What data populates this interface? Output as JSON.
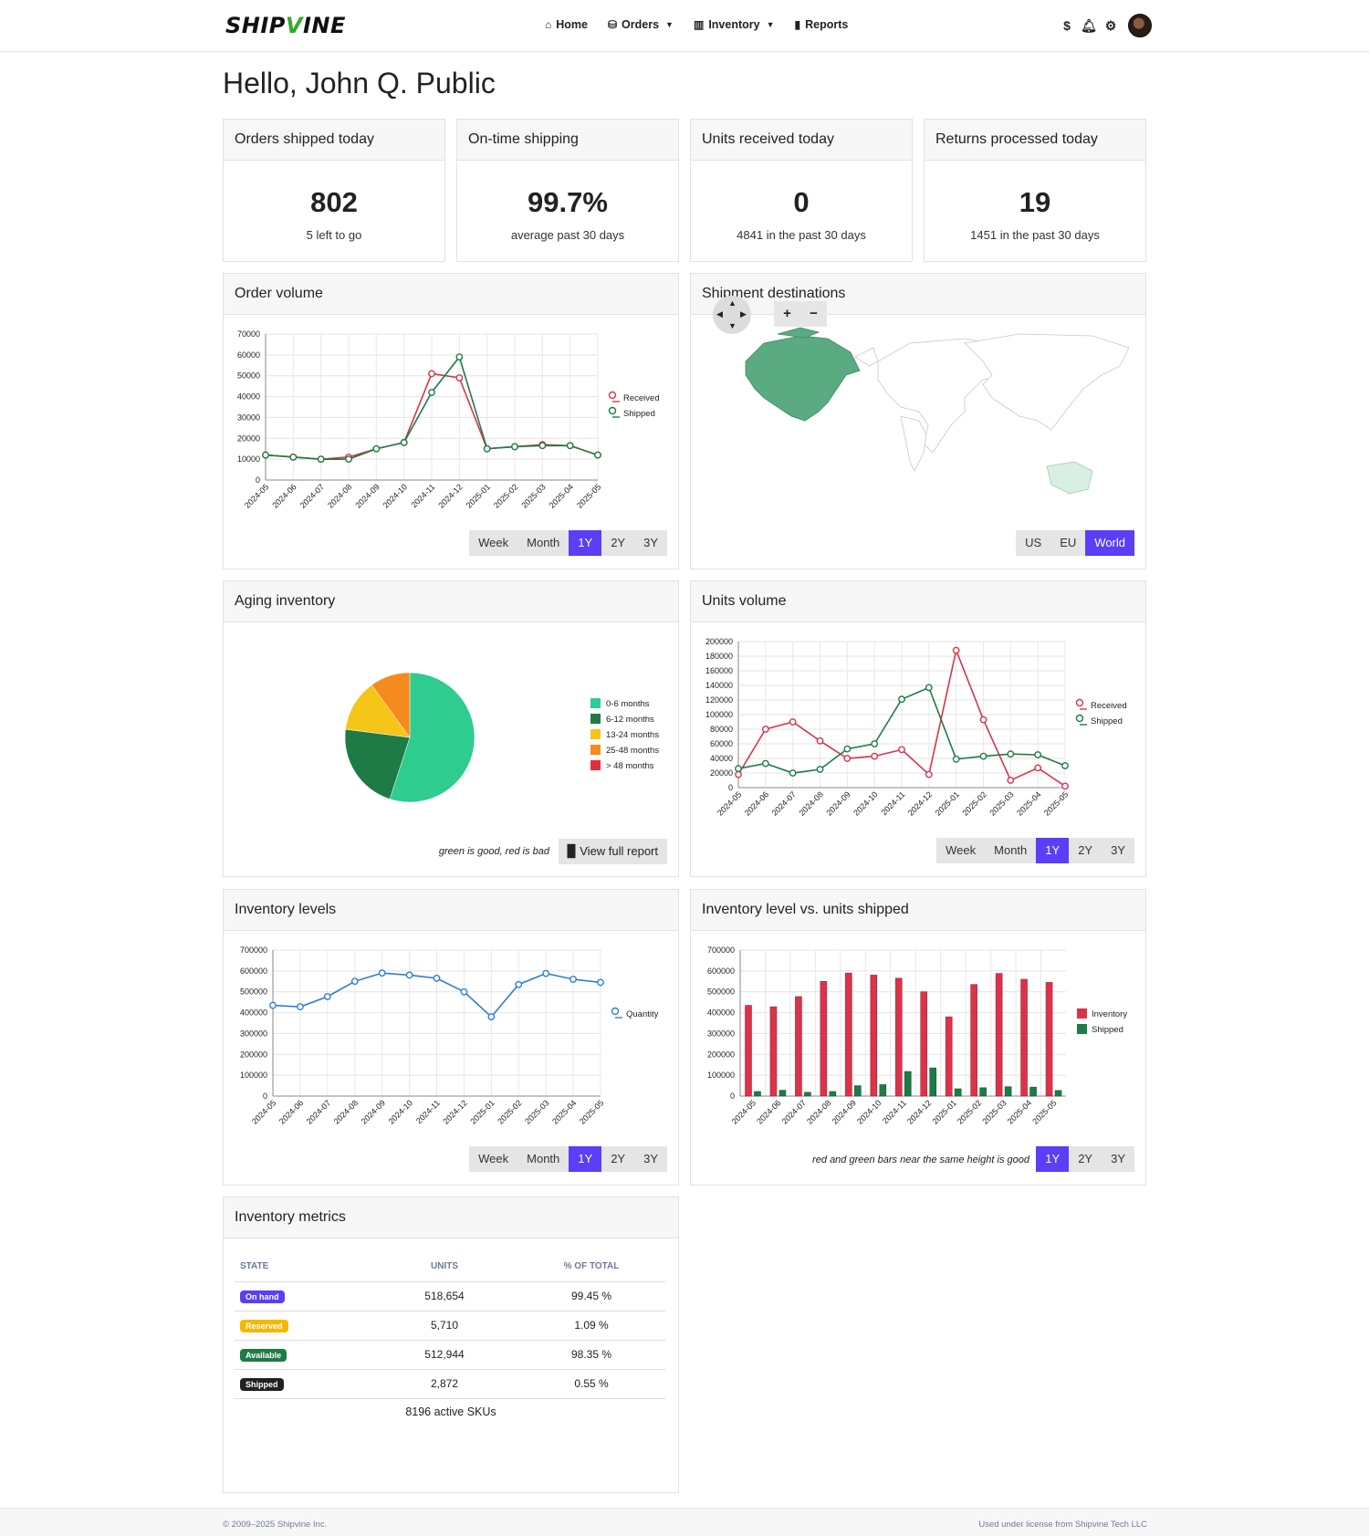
{
  "brand": {
    "logo": "SHIPVINE"
  },
  "nav": [
    {
      "label": "Home",
      "icon": "home-icon"
    },
    {
      "label": "Orders",
      "icon": "boxes-icon",
      "dropdown": true
    },
    {
      "label": "Inventory",
      "icon": "barcode-icon",
      "dropdown": true
    },
    {
      "label": "Reports",
      "icon": "book-icon"
    }
  ],
  "top_icons": [
    "dollar-icon",
    "bell-icon",
    "gear-icon",
    "avatar"
  ],
  "greeting": "Hello, John Q. Public",
  "stats": [
    {
      "title": "Orders shipped today",
      "value": "802",
      "sub": "5 left to go"
    },
    {
      "title": "On-time shipping",
      "value": "99.7%",
      "sub": "average past 30 days"
    },
    {
      "title": "Units received today",
      "value": "0",
      "sub": "4841 in the past 30 days"
    },
    {
      "title": "Returns processed today",
      "value": "19",
      "sub": "1451 in the past 30 days"
    }
  ],
  "range_buttons": {
    "week": "Week",
    "month": "Month",
    "y1": "1Y",
    "y2": "2Y",
    "y3": "3Y"
  },
  "order_volume": {
    "title": "Order volume"
  },
  "shipment_destinations": {
    "title": "Shipment destinations",
    "zoom_in": "+",
    "zoom_out": "−",
    "regions": [
      "US",
      "EU",
      "World"
    ],
    "active_region": "World"
  },
  "aging_inventory": {
    "title": "Aging inventory",
    "note": "green is good, red is bad",
    "report_button": "View full report"
  },
  "units_volume": {
    "title": "Units volume"
  },
  "inventory_levels": {
    "title": "Inventory levels"
  },
  "inv_vs_shipped": {
    "title": "Inventory level vs. units shipped",
    "note": "red and green bars near the same height is good"
  },
  "inventory_metrics": {
    "title": "Inventory metrics",
    "headers": [
      "State",
      "Units",
      "% of total"
    ],
    "rows": [
      {
        "state": "On hand",
        "color": "#5b3ef5",
        "units": "518,654",
        "pct": "99.45 %"
      },
      {
        "state": "Reserved",
        "color": "#f5b700",
        "units": "5,710",
        "pct": "1.09 %"
      },
      {
        "state": "Available",
        "color": "#1e7b45",
        "units": "512,944",
        "pct": "98.35 %"
      },
      {
        "state": "Shipped",
        "color": "#222222",
        "units": "2,872",
        "pct": "0.55 %"
      }
    ],
    "skus": "8196 active SKUs"
  },
  "footer": {
    "left": "© 2009–2025 Shipvine Inc.",
    "right": "Used under license from Shipvine Tech LLC"
  },
  "colors": {
    "accent": "#5b3ef5",
    "received": "#d9344a",
    "shipped": "#1e7b45",
    "quantity": "#2e7fd0"
  },
  "chart_data": [
    {
      "id": "order_volume",
      "type": "line",
      "x": [
        "2024-05",
        "2024-06",
        "2024-07",
        "2024-08",
        "2024-09",
        "2024-10",
        "2024-11",
        "2024-12",
        "2025-01",
        "2025-02",
        "2025-03",
        "2025-04",
        "2025-05"
      ],
      "ylim": [
        0,
        70000
      ],
      "yticks": [
        0,
        10000,
        20000,
        30000,
        40000,
        50000,
        60000,
        70000
      ],
      "series": [
        {
          "name": "Received",
          "color": "#d9344a",
          "values": [
            12000,
            11000,
            10000,
            11000,
            15000,
            18000,
            51000,
            49000,
            15000,
            16000,
            17000,
            16500,
            12000
          ]
        },
        {
          "name": "Shipped",
          "color": "#1e7b45",
          "values": [
            12000,
            11000,
            10000,
            10000,
            15000,
            18000,
            42000,
            59000,
            15000,
            16000,
            16500,
            16500,
            12000
          ]
        }
      ],
      "legend": "right",
      "grid": true
    },
    {
      "id": "aging_inventory",
      "type": "pie",
      "labels": [
        "0-6 months",
        "6-12 months",
        "13-24 months",
        "25-48 months",
        "> 48 months"
      ],
      "values": [
        55,
        22,
        13,
        10,
        0
      ],
      "colors": [
        "#2ecc8f",
        "#1e7b45",
        "#f5c518",
        "#f58a1f",
        "#e03040"
      ],
      "legend": "right"
    },
    {
      "id": "units_volume",
      "type": "line",
      "x": [
        "2024-05",
        "2024-06",
        "2024-07",
        "2024-08",
        "2024-09",
        "2024-10",
        "2024-11",
        "2024-12",
        "2025-01",
        "2025-02",
        "2025-03",
        "2025-04",
        "2025-05"
      ],
      "ylim": [
        0,
        200000
      ],
      "yticks": [
        0,
        20000,
        40000,
        60000,
        80000,
        100000,
        120000,
        140000,
        160000,
        180000,
        200000
      ],
      "series": [
        {
          "name": "Received",
          "color": "#d9344a",
          "values": [
            18000,
            80000,
            90000,
            64000,
            40000,
            43000,
            52000,
            18000,
            188000,
            93000,
            10000,
            27000,
            2000
          ]
        },
        {
          "name": "Shipped",
          "color": "#1e7b45",
          "values": [
            26000,
            33000,
            20000,
            25000,
            53000,
            60000,
            121000,
            137000,
            39000,
            43000,
            46000,
            45000,
            30000
          ]
        }
      ],
      "legend": "right",
      "grid": true
    },
    {
      "id": "inventory_levels",
      "type": "line",
      "x": [
        "2024-05",
        "2024-06",
        "2024-07",
        "2024-08",
        "2024-09",
        "2024-10",
        "2024-11",
        "2024-12",
        "2025-01",
        "2025-02",
        "2025-03",
        "2025-04",
        "2025-05"
      ],
      "ylim": [
        0,
        700000
      ],
      "yticks": [
        0,
        100000,
        200000,
        300000,
        400000,
        500000,
        600000,
        700000
      ],
      "series": [
        {
          "name": "Quantity",
          "color": "#2e7fd0",
          "values": [
            435000,
            428000,
            477000,
            550000,
            590000,
            580000,
            565000,
            500000,
            380000,
            535000,
            588000,
            560000,
            545000
          ]
        }
      ],
      "legend": "right",
      "grid": true
    },
    {
      "id": "inv_vs_shipped",
      "type": "bar",
      "categories": [
        "2024-05",
        "2024-06",
        "2024-07",
        "2024-08",
        "2024-09",
        "2024-10",
        "2024-11",
        "2024-12",
        "2025-01",
        "2025-02",
        "2025-03",
        "2025-04",
        "2025-05"
      ],
      "ylim": [
        0,
        700000
      ],
      "yticks": [
        0,
        100000,
        200000,
        300000,
        400000,
        500000,
        600000,
        700000
      ],
      "series": [
        {
          "name": "Inventory",
          "color": "#d9344a",
          "values": [
            435000,
            428000,
            477000,
            550000,
            590000,
            580000,
            565000,
            500000,
            380000,
            535000,
            588000,
            560000,
            545000
          ]
        },
        {
          "name": "Shipped",
          "color": "#1e7b45",
          "values": [
            22000,
            28000,
            18000,
            22000,
            50000,
            55000,
            118000,
            135000,
            35000,
            40000,
            45000,
            43000,
            27000
          ]
        }
      ],
      "legend": "right",
      "grid": true
    }
  ]
}
